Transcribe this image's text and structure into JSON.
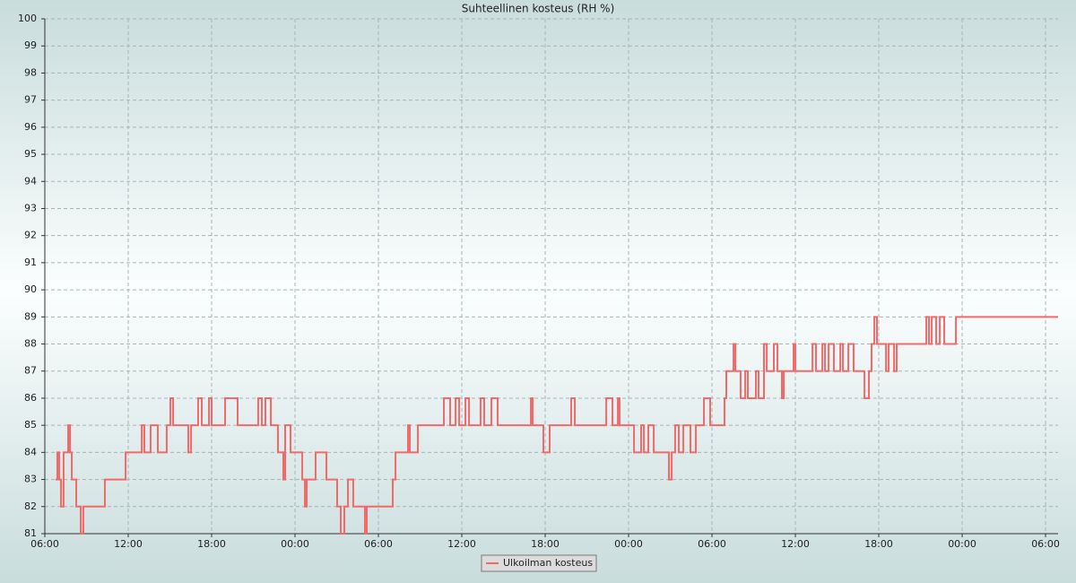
{
  "chart_data": {
    "type": "line",
    "title": "Suhteellinen kosteus (RH %)",
    "series": [
      {
        "name": "Ulkoilman kosteus",
        "color": "#f06a6a",
        "step": true,
        "x": [
          0.77,
          0.9,
          1.03,
          1.16,
          1.35,
          1.68,
          1.81,
          1.94,
          2.26,
          2.58,
          2.77,
          4.32,
          5.81,
          6.97,
          7.16,
          7.61,
          8.13,
          8.77,
          9.03,
          9.23,
          10.32,
          10.52,
          11.03,
          11.29,
          11.81,
          12.0,
          12.97,
          13.87,
          15.35,
          15.61,
          15.87,
          16.26,
          16.77,
          17.16,
          17.29,
          17.68,
          18.52,
          18.71,
          18.84,
          19.48,
          20.26,
          21.03,
          21.29,
          21.55,
          21.81,
          22.19,
          23.03,
          23.16,
          25.03,
          25.23,
          26.13,
          26.26,
          26.84,
          28.71,
          29.16,
          29.55,
          29.81,
          30.26,
          30.52,
          31.35,
          31.61,
          32.13,
          32.58,
          34.97,
          35.1,
          35.87,
          36.32,
          37.87,
          38.13,
          40.39,
          40.84,
          41.23,
          41.35,
          42.39,
          42.9,
          43.1,
          43.42,
          43.81,
          44.9,
          45.1,
          45.35,
          45.61,
          45.94,
          46.45,
          46.84,
          47.42,
          47.87,
          48.9,
          49.03,
          49.55,
          49.68,
          50.06,
          50.39,
          50.58,
          51.16,
          51.35,
          51.74,
          51.94,
          52.45,
          52.71,
          53.03,
          53.16,
          53.87,
          54.0,
          55.23,
          55.48,
          55.94,
          56.13,
          56.39,
          56.77,
          57.23,
          57.42,
          57.81,
          58.19,
          58.97,
          59.29,
          59.48,
          59.68,
          59.87,
          60.52,
          60.71,
          61.1,
          61.29,
          63.42,
          63.61,
          63.81,
          64.13,
          64.39,
          64.71,
          65.55,
          72.9
        ],
        "values": [
          83,
          84,
          83,
          82,
          84,
          85,
          84,
          83,
          82,
          81,
          82,
          83,
          84,
          85,
          84,
          85,
          84,
          85,
          86,
          85,
          84,
          85,
          86,
          85,
          86,
          85,
          86,
          85,
          86,
          85,
          86,
          85,
          84,
          83,
          85,
          84,
          83,
          82,
          83,
          84,
          83,
          82,
          81,
          82,
          83,
          82,
          81,
          82,
          83,
          84,
          85,
          84,
          85,
          86,
          85,
          86,
          85,
          86,
          85,
          86,
          85,
          86,
          85,
          86,
          85,
          84,
          85,
          86,
          85,
          86,
          85,
          86,
          85,
          84,
          85,
          84,
          85,
          84,
          83,
          84,
          85,
          84,
          85,
          84,
          85,
          86,
          85,
          86,
          87,
          88,
          87,
          86,
          87,
          86,
          87,
          86,
          88,
          87,
          88,
          87,
          86,
          87,
          88,
          87,
          88,
          87,
          88,
          87,
          88,
          87,
          88,
          87,
          88,
          87,
          86,
          87,
          88,
          89,
          88,
          87,
          88,
          87,
          88,
          89,
          88,
          89,
          88,
          89,
          88,
          89,
          89
        ]
      }
    ],
    "xlim": [
      0,
      72.9
    ],
    "xticks": [
      {
        "value": 0,
        "label": "06:00"
      },
      {
        "value": 6,
        "label": "12:00"
      },
      {
        "value": 12,
        "label": "18:00"
      },
      {
        "value": 18,
        "label": "00:00"
      },
      {
        "value": 24,
        "label": "06:00"
      },
      {
        "value": 30,
        "label": "12:00"
      },
      {
        "value": 36,
        "label": "18:00"
      },
      {
        "value": 42,
        "label": "00:00"
      },
      {
        "value": 48,
        "label": "06:00"
      },
      {
        "value": 54,
        "label": "12:00"
      },
      {
        "value": 60,
        "label": "18:00"
      },
      {
        "value": 66,
        "label": "00:00"
      },
      {
        "value": 72,
        "label": "06:00"
      }
    ],
    "ylim": [
      81,
      100
    ],
    "yticks": [
      81,
      82,
      83,
      84,
      85,
      86,
      87,
      88,
      89,
      90,
      91,
      92,
      93,
      94,
      95,
      96,
      97,
      98,
      99,
      100
    ],
    "grid": true
  }
}
